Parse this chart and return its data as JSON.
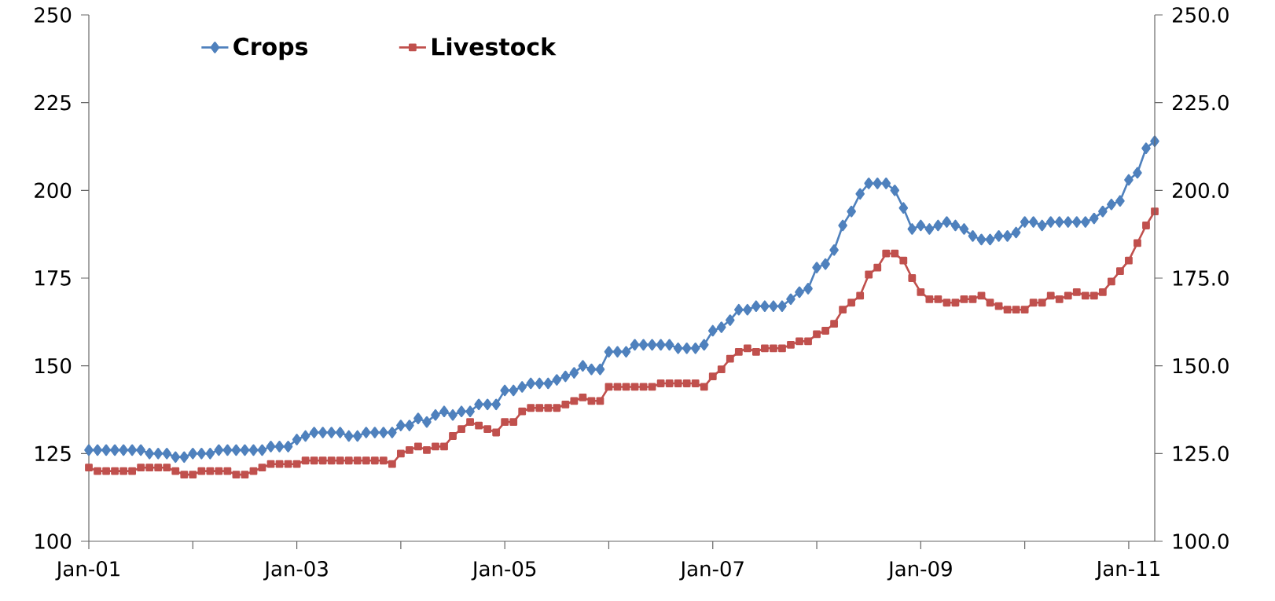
{
  "chart_data": {
    "type": "line",
    "x": [
      "2001-01",
      "2001-02",
      "2001-03",
      "2001-04",
      "2001-05",
      "2001-06",
      "2001-07",
      "2001-08",
      "2001-09",
      "2001-10",
      "2001-11",
      "2001-12",
      "2002-01",
      "2002-02",
      "2002-03",
      "2002-04",
      "2002-05",
      "2002-06",
      "2002-07",
      "2002-08",
      "2002-09",
      "2002-10",
      "2002-11",
      "2002-12",
      "2003-01",
      "2003-02",
      "2003-03",
      "2003-04",
      "2003-05",
      "2003-06",
      "2003-07",
      "2003-08",
      "2003-09",
      "2003-10",
      "2003-11",
      "2003-12",
      "2004-01",
      "2004-02",
      "2004-03",
      "2004-04",
      "2004-05",
      "2004-06",
      "2004-07",
      "2004-08",
      "2004-09",
      "2004-10",
      "2004-11",
      "2004-12",
      "2005-01",
      "2005-02",
      "2005-03",
      "2005-04",
      "2005-05",
      "2005-06",
      "2005-07",
      "2005-08",
      "2005-09",
      "2005-10",
      "2005-11",
      "2005-12",
      "2006-01",
      "2006-02",
      "2006-03",
      "2006-04",
      "2006-05",
      "2006-06",
      "2006-07",
      "2006-08",
      "2006-09",
      "2006-10",
      "2006-11",
      "2006-12",
      "2007-01",
      "2007-02",
      "2007-03",
      "2007-04",
      "2007-05",
      "2007-06",
      "2007-07",
      "2007-08",
      "2007-09",
      "2007-10",
      "2007-11",
      "2007-12",
      "2008-01",
      "2008-02",
      "2008-03",
      "2008-04",
      "2008-05",
      "2008-06",
      "2008-07",
      "2008-08",
      "2008-09",
      "2008-10",
      "2008-11",
      "2008-12",
      "2009-01",
      "2009-02",
      "2009-03",
      "2009-04",
      "2009-05",
      "2009-06",
      "2009-07",
      "2009-08",
      "2009-09",
      "2009-10",
      "2009-11",
      "2009-12",
      "2010-01",
      "2010-02",
      "2010-03",
      "2010-04",
      "2010-05",
      "2010-06",
      "2010-07",
      "2010-08",
      "2010-09",
      "2010-10",
      "2010-11",
      "2010-12",
      "2011-01",
      "2011-02",
      "2011-03",
      "2011-04"
    ],
    "series": [
      {
        "name": "Crops",
        "color": "#4f81bd",
        "marker": "diamond",
        "values": [
          126,
          126,
          126,
          126,
          126,
          126,
          126,
          125,
          125,
          125,
          124,
          124,
          125,
          125,
          125,
          126,
          126,
          126,
          126,
          126,
          126,
          127,
          127,
          127,
          129,
          130,
          131,
          131,
          131,
          131,
          130,
          130,
          131,
          131,
          131,
          131,
          133,
          133,
          135,
          134,
          136,
          137,
          136,
          137,
          137,
          139,
          139,
          139,
          143,
          143,
          144,
          145,
          145,
          145,
          146,
          147,
          148,
          150,
          149,
          149,
          154,
          154,
          154,
          156,
          156,
          156,
          156,
          156,
          155,
          155,
          155,
          156,
          160,
          161,
          163,
          166,
          166,
          167,
          167,
          167,
          167,
          169,
          171,
          172,
          178,
          179,
          183,
          190,
          194,
          199,
          202,
          202,
          202,
          200,
          195,
          189,
          190,
          189,
          190,
          191,
          190,
          189,
          187,
          186,
          186,
          187,
          187,
          188,
          191,
          191,
          190,
          191,
          191,
          191,
          191,
          191,
          192,
          194,
          196,
          197,
          203,
          205,
          212,
          214
        ]
      },
      {
        "name": "Livestock",
        "color": "#c0504d",
        "marker": "square",
        "values": [
          121,
          120,
          120,
          120,
          120,
          120,
          121,
          121,
          121,
          121,
          120,
          119,
          119,
          120,
          120,
          120,
          120,
          119,
          119,
          120,
          121,
          122,
          122,
          122,
          122,
          123,
          123,
          123,
          123,
          123,
          123,
          123,
          123,
          123,
          123,
          122,
          125,
          126,
          127,
          126,
          127,
          127,
          130,
          132,
          134,
          133,
          132,
          131,
          134,
          134,
          137,
          138,
          138,
          138,
          138,
          139,
          140,
          141,
          140,
          140,
          144,
          144,
          144,
          144,
          144,
          144,
          145,
          145,
          145,
          145,
          145,
          144,
          147,
          149,
          152,
          154,
          155,
          154,
          155,
          155,
          155,
          156,
          157,
          157,
          159,
          160,
          162,
          166,
          168,
          170,
          176,
          178,
          182,
          182,
          180,
          175,
          171,
          169,
          169,
          168,
          168,
          169,
          169,
          170,
          168,
          167,
          166,
          166,
          166,
          168,
          168,
          170,
          169,
          170,
          171,
          170,
          170,
          171,
          174,
          177,
          180,
          185,
          190,
          194
        ]
      }
    ],
    "xlim": [
      "2001-01",
      "2011-04"
    ],
    "xticks": [
      {
        "value": "2001-01",
        "label": "Jan-01"
      },
      {
        "value": "2002-01",
        "label": null
      },
      {
        "value": "2003-01",
        "label": "Jan-03"
      },
      {
        "value": "2004-01",
        "label": null
      },
      {
        "value": "2005-01",
        "label": "Jan-05"
      },
      {
        "value": "2006-01",
        "label": null
      },
      {
        "value": "2007-01",
        "label": "Jan-07"
      },
      {
        "value": "2008-01",
        "label": null
      },
      {
        "value": "2009-01",
        "label": "Jan-09"
      },
      {
        "value": "2010-01",
        "label": null
      },
      {
        "value": "2011-01",
        "label": "Jan-11"
      }
    ],
    "ylim": [
      100,
      250
    ],
    "yticks": [
      100,
      125,
      150,
      175,
      200,
      225,
      250
    ],
    "y2lim": [
      100,
      250
    ],
    "y2ticks": [
      {
        "value": 100,
        "label": "100.0"
      },
      {
        "value": 125,
        "label": "125.0"
      },
      {
        "value": 150,
        "label": "150.0"
      },
      {
        "value": 175,
        "label": "175.0"
      },
      {
        "value": 200,
        "label": "200.0"
      },
      {
        "value": 225,
        "label": "225.0"
      },
      {
        "value": 250,
        "label": "250.0"
      }
    ],
    "grid": false,
    "legend": "top left",
    "line_style": "solid"
  }
}
